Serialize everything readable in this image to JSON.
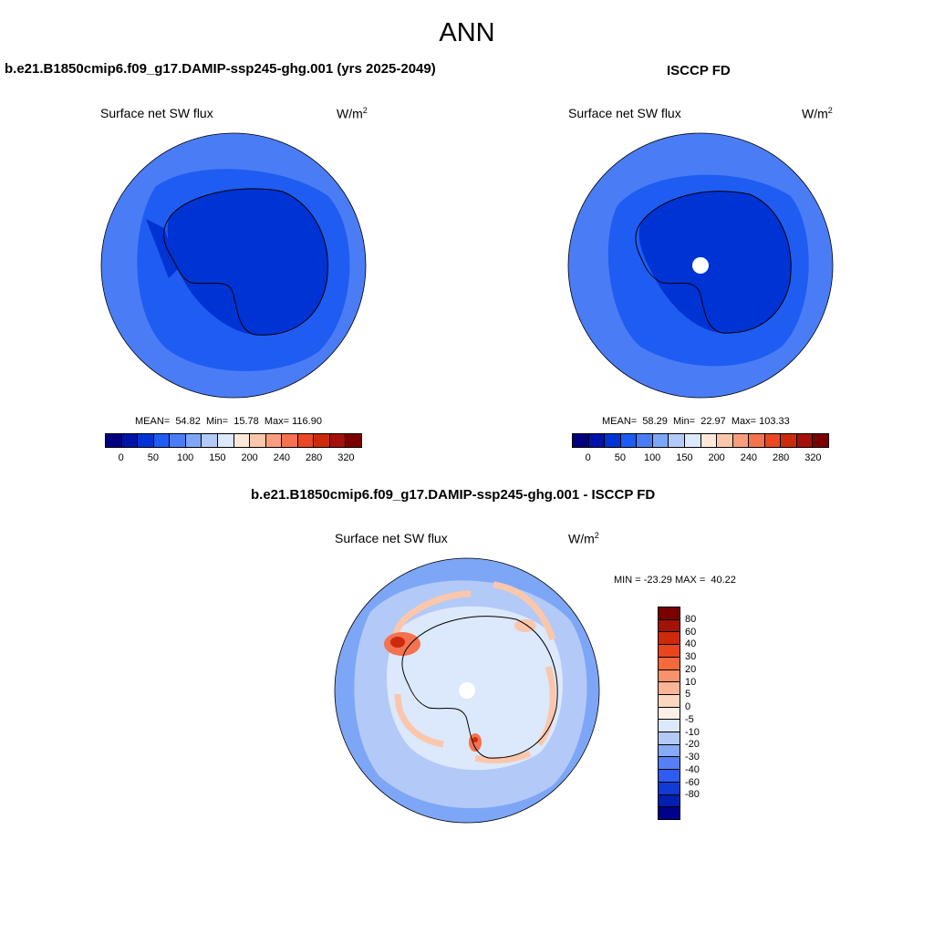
{
  "page": {
    "title": "ANN"
  },
  "panels": [
    {
      "id": "model",
      "title": "b.e21.B1850cmip6.f09_g17.DAMIP-ssp245-ghg.001 (yrs 2025-2049)",
      "variable": "Surface net SW flux",
      "unit_base": "W/m",
      "unit_exp": "2",
      "stats": "MEAN=  54.82  Min=  15.78  Max= 116.90"
    },
    {
      "id": "obs",
      "title": "ISCCP FD",
      "variable": "Surface net SW flux",
      "unit_base": "W/m",
      "unit_exp": "2",
      "stats": "MEAN=  58.29  Min=  22.97  Max= 103.33"
    },
    {
      "id": "diff",
      "title": "b.e21.B1850cmip6.f09_g17.DAMIP-ssp245-ghg.001 - ISCCP FD",
      "variable": "Surface net SW flux",
      "unit_base": "W/m",
      "unit_exp": "2",
      "stats": "MIN = -23.29 MAX =  40.22"
    }
  ],
  "colorbars": {
    "abs_colors": [
      "#00007f",
      "#0013a8",
      "#0033d4",
      "#1f5cf2",
      "#4a7df5",
      "#7ea6f7",
      "#b3c9f7",
      "#dce8fb",
      "#fde9d9",
      "#fbc7ac",
      "#f99e7d",
      "#f5724f",
      "#ea4825",
      "#cc2a0c",
      "#a5100a",
      "#7a0000"
    ],
    "abs_ticks": [
      "0",
      "50",
      "100",
      "150",
      "200",
      "240",
      "280",
      "320"
    ],
    "diff_colors": [
      "#7a0000",
      "#a11405",
      "#cc2a0a",
      "#e9451f",
      "#f5693d",
      "#f7926b",
      "#f9b596",
      "#fcd7c0",
      "#fef0e6",
      "#dce8fb",
      "#b3c9f7",
      "#86aaf6",
      "#557ff3",
      "#2e5cf0",
      "#103bd5",
      "#0020b0",
      "#00008a"
    ],
    "diff_ticks": [
      "80",
      "60",
      "40",
      "30",
      "20",
      "10",
      "5",
      "0",
      "-5",
      "-10",
      "-20",
      "-30",
      "-40",
      "-60",
      "-80"
    ]
  },
  "map_colors": {
    "ocean_model": "#4a7df5",
    "ice_model": "#0033d4",
    "shelf_model": "#1f5cf2",
    "ocean_obs": "#4a7df5",
    "ice_obs": "#0033d4",
    "shelf_obs": "#1f5cf2",
    "diff_base": "#7ea6f7",
    "diff_light": "#b3c9f7",
    "diff_pale": "#dce8fb",
    "diff_warm": "#fbc7ac",
    "diff_hot": "#f5724f",
    "diff_red": "#cc2a0c",
    "missing": "#ffffff",
    "coast": "#000000"
  }
}
